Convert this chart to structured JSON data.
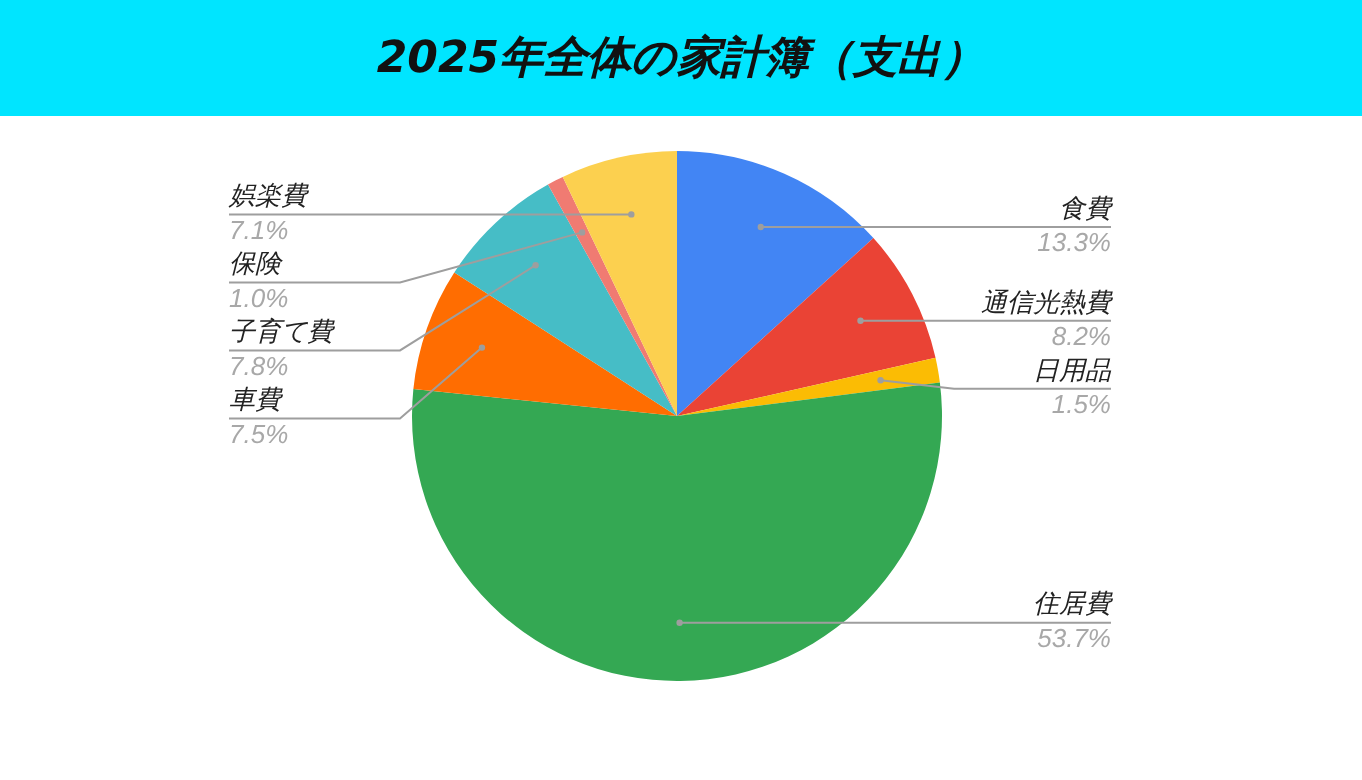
{
  "chart_data": {
    "type": "pie",
    "title": "2025年全体の家計簿（支出）",
    "categories": [
      "食費",
      "通信光熱費",
      "日用品",
      "住居費",
      "車費",
      "子育て費",
      "保険",
      "娯楽費"
    ],
    "values": [
      13.3,
      8.2,
      1.5,
      53.7,
      7.5,
      7.8,
      1.0,
      7.1
    ],
    "value_labels": [
      "13.3%",
      "8.2%",
      "1.5%",
      "53.7%",
      "7.5%",
      "7.8%",
      "1.0%",
      "7.1%"
    ],
    "colors": [
      "#4285f4",
      "#ea4335",
      "#fbbc04",
      "#34a853",
      "#ff6d01",
      "#46bdc6",
      "#f07b72",
      "#fcd04f"
    ],
    "legend": false
  }
}
